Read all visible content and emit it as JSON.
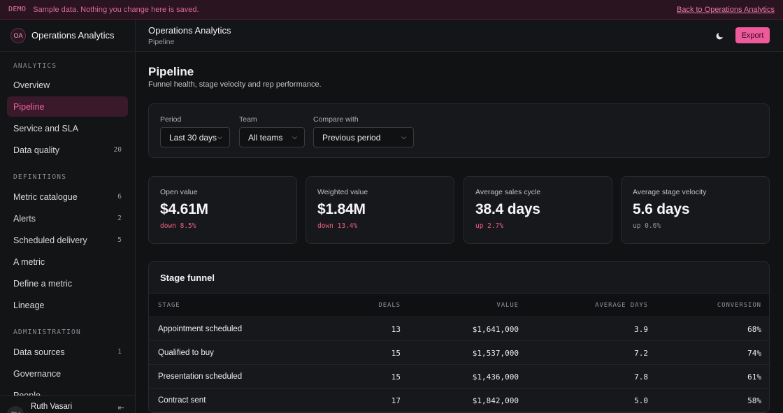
{
  "banner": {
    "tag": "DEMO",
    "message": "Sample data. Nothing you change here is saved.",
    "back_link": "Back to Operations Analytics"
  },
  "brand": {
    "initials": "OA",
    "name": "Operations Analytics"
  },
  "sidebar": {
    "sections": [
      {
        "heading": "ANALYTICS",
        "items": [
          {
            "label": "Overview",
            "count": ""
          },
          {
            "label": "Pipeline",
            "count": "",
            "active": true
          },
          {
            "label": "Service and SLA",
            "count": ""
          },
          {
            "label": "Data quality",
            "count": "20"
          }
        ]
      },
      {
        "heading": "DEFINITIONS",
        "items": [
          {
            "label": "Metric catalogue",
            "count": "6"
          },
          {
            "label": "Alerts",
            "count": "2"
          },
          {
            "label": "Scheduled delivery",
            "count": "5"
          },
          {
            "label": "A metric",
            "count": ""
          },
          {
            "label": "Define a metric",
            "count": ""
          },
          {
            "label": "Lineage",
            "count": ""
          }
        ]
      },
      {
        "heading": "ADMINISTRATION",
        "items": [
          {
            "label": "Data sources",
            "count": "1"
          },
          {
            "label": "Governance",
            "count": ""
          },
          {
            "label": "People",
            "count": ""
          }
        ]
      }
    ],
    "user": {
      "initials": "RV",
      "name": "Ruth Vasari",
      "action_glyph": "⇤"
    }
  },
  "header": {
    "title": "Operations Analytics",
    "breadcrumb": "Pipeline",
    "theme_icon": "moon-icon",
    "export_label": "Export"
  },
  "page": {
    "title": "Pipeline",
    "subtitle": "Funnel health, stage velocity and rep performance."
  },
  "filters": [
    {
      "label": "Period",
      "value": "Last 30 days"
    },
    {
      "label": "Team",
      "value": "All teams"
    },
    {
      "label": "Compare with",
      "value": "Previous period"
    }
  ],
  "kpis": [
    {
      "label": "Open value",
      "value": "$4.61M",
      "delta": "down 8.5%",
      "tone": "down"
    },
    {
      "label": "Weighted value",
      "value": "$1.84M",
      "delta": "down 13.4%",
      "tone": "down"
    },
    {
      "label": "Average sales cycle",
      "value": "38.4 days",
      "delta": "up 2.7%",
      "tone": "up-red"
    },
    {
      "label": "Average stage velocity",
      "value": "5.6 days",
      "delta": "up 0.6%",
      "tone": "up-neutral"
    }
  ],
  "funnel": {
    "title": "Stage funnel",
    "columns": [
      "STAGE",
      "DEALS",
      "VALUE",
      "AVERAGE DAYS",
      "CONVERSION"
    ],
    "rows": [
      [
        "Appointment scheduled",
        "13",
        "$1,641,000",
        "3.9",
        "68%"
      ],
      [
        "Qualified to buy",
        "15",
        "$1,537,000",
        "7.2",
        "74%"
      ],
      [
        "Presentation scheduled",
        "15",
        "$1,436,000",
        "7.8",
        "61%"
      ],
      [
        "Contract sent",
        "17",
        "$1,842,000",
        "5.0",
        "58%"
      ]
    ]
  },
  "colors": {
    "accent": "#ef5a9c",
    "active_nav_bg": "#3a1a2a",
    "negative": "#f0607f",
    "background": "#111214"
  }
}
